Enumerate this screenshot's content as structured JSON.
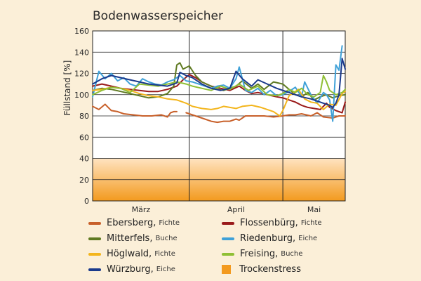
{
  "chart_data": {
    "type": "line",
    "title": "Bodenwasserspeicher",
    "ylabel": "Füllstand [%]",
    "ylim": [
      0,
      160
    ],
    "yticks": [
      0,
      20,
      40,
      60,
      80,
      100,
      120,
      140,
      160
    ],
    "months": [
      "März",
      "April",
      "Mai"
    ],
    "month_bounds": [
      0,
      31,
      61,
      81
    ],
    "trockenstress_threshold": 40,
    "grid": true,
    "series": [
      {
        "name": "Ebersberg",
        "species": "Fichte",
        "color": "#c8602a",
        "x": [
          0,
          2,
          4,
          6,
          8,
          10,
          13,
          16,
          19,
          22,
          24,
          25,
          26,
          27
        ],
        "y": [
          89,
          86,
          91,
          85,
          84,
          82,
          81,
          80,
          80,
          81,
          79,
          83,
          84,
          84
        ]
      },
      {
        "name": "Ebersberg",
        "species": "Fichte",
        "color": "#c8602a",
        "x": [
          30,
          32,
          35,
          38,
          40,
          42,
          44,
          46,
          47,
          49,
          52,
          55,
          58,
          61,
          63,
          65,
          67,
          70,
          72,
          74,
          77,
          79,
          81
        ],
        "y": [
          83,
          81,
          78,
          75,
          74,
          75,
          75,
          77,
          76,
          80,
          80,
          80,
          79,
          80,
          81,
          81,
          82,
          80,
          83,
          79,
          78,
          80,
          80
        ]
      },
      {
        "name": "Flossenbürg",
        "species": "Fichte",
        "color": "#9a1a1a",
        "x": [
          0,
          3,
          6,
          9,
          12,
          15,
          18,
          21,
          24,
          27,
          29,
          31,
          33,
          35,
          38,
          41,
          44,
          47,
          49,
          51,
          53,
          56,
          59,
          61,
          63,
          65,
          67,
          69,
          71,
          73,
          75,
          76,
          78,
          80,
          81
        ],
        "y": [
          108,
          110,
          108,
          106,
          105,
          104,
          103,
          103,
          105,
          108,
          114,
          119,
          116,
          112,
          108,
          106,
          104,
          108,
          104,
          101,
          102,
          100,
          98,
          97,
          95,
          93,
          90,
          88,
          87,
          86,
          92,
          88,
          85,
          83,
          93
        ]
      },
      {
        "name": "Mitterfels",
        "species": "Buche",
        "color": "#5f7a22",
        "x": [
          0,
          3,
          6,
          9,
          12,
          15,
          18,
          21,
          24,
          26,
          27,
          28,
          29,
          31,
          33,
          35,
          38,
          40,
          42,
          44,
          46,
          48,
          51,
          53,
          55,
          58,
          61,
          63,
          65,
          67,
          69,
          71,
          73,
          75,
          77,
          79,
          81
        ],
        "y": [
          104,
          106,
          105,
          103,
          101,
          99,
          97,
          98,
          101,
          108,
          128,
          130,
          124,
          127,
          118,
          112,
          108,
          105,
          104,
          106,
          108,
          113,
          106,
          110,
          105,
          112,
          110,
          105,
          100,
          98,
          102,
          95,
          98,
          100,
          97,
          99,
          100
        ]
      },
      {
        "name": "Riedenburg",
        "species": "Eiche",
        "color": "#3fa1d8",
        "x": [
          0,
          2,
          4,
          6,
          8,
          10,
          12,
          14,
          16,
          18,
          20,
          22,
          24,
          26,
          28,
          30,
          32,
          34,
          36,
          38,
          40,
          42,
          44,
          46,
          47,
          49,
          51,
          53,
          55,
          57,
          59,
          61,
          63,
          65,
          67,
          68,
          70,
          72,
          74,
          75,
          76,
          77,
          78,
          79,
          80
        ],
        "y": [
          98,
          122,
          115,
          120,
          113,
          116,
          110,
          108,
          115,
          112,
          110,
          109,
          112,
          114,
          118,
          113,
          112,
          110,
          108,
          106,
          108,
          109,
          106,
          115,
          126,
          104,
          102,
          106,
          100,
          104,
          99,
          100,
          103,
          107,
          98,
          112,
          100,
          92,
          102,
          100,
          95,
          75,
          128,
          123,
          146
        ]
      },
      {
        "name": "Höglwald",
        "species": "Fichte",
        "color": "#f3b51c",
        "x": [
          0,
          3,
          6,
          9,
          12,
          15,
          18,
          21,
          24,
          27,
          30,
          32,
          35,
          38,
          40,
          42,
          44,
          46,
          48,
          51,
          54,
          56,
          58,
          60,
          61,
          63,
          66,
          68,
          70,
          72,
          74,
          76,
          78,
          80,
          81
        ],
        "y": [
          104,
          105,
          107,
          106,
          104,
          101,
          99,
          98,
          96,
          95,
          92,
          89,
          87,
          86,
          87,
          89,
          88,
          87,
          89,
          90,
          88,
          86,
          84,
          80,
          85,
          99,
          105,
          96,
          93,
          92,
          86,
          91,
          90,
          101,
          103
        ]
      },
      {
        "name": "Freising",
        "species": "Buche",
        "color": "#8fbf35",
        "x": [
          0,
          3,
          6,
          9,
          12,
          15,
          18,
          21,
          24,
          27,
          30,
          32,
          35,
          38,
          41,
          44,
          47,
          50,
          53,
          56,
          59,
          61,
          63,
          65,
          67,
          69,
          71,
          73,
          74,
          75,
          76,
          78,
          80,
          81
        ],
        "y": [
          100,
          104,
          107,
          106,
          102,
          110,
          109,
          108,
          110,
          112,
          110,
          108,
          106,
          104,
          108,
          105,
          110,
          104,
          108,
          100,
          99,
          101,
          105,
          102,
          106,
          100,
          98,
          102,
          118,
          112,
          104,
          100,
          102,
          105
        ]
      },
      {
        "name": "Würzburg",
        "species": "Eiche",
        "color": "#1a3a8c",
        "x": [
          0,
          3,
          6,
          9,
          12,
          15,
          18,
          21,
          24,
          27,
          28,
          30,
          32,
          35,
          38,
          41,
          44,
          46,
          48,
          51,
          53,
          56,
          59,
          61,
          63,
          65,
          67,
          70,
          72,
          74,
          76,
          77,
          78,
          79,
          80,
          81
        ],
        "y": [
          110,
          115,
          118,
          116,
          114,
          112,
          110,
          109,
          108,
          111,
          121,
          118,
          116,
          110,
          106,
          104,
          106,
          122,
          115,
          108,
          114,
          110,
          106,
          104,
          102,
          100,
          98,
          96,
          94,
          92,
          90,
          88,
          92,
          100,
          134,
          124
        ]
      }
    ]
  },
  "legend": [
    {
      "name": "Ebersberg,",
      "species": "Fichte",
      "color": "#c8602a",
      "kind": "line"
    },
    {
      "name": "Flossenbürg,",
      "species": "Fichte",
      "color": "#9a1a1a",
      "kind": "line"
    },
    {
      "name": "Mitterfels,",
      "species": "Buche",
      "color": "#5f7a22",
      "kind": "line"
    },
    {
      "name": "Riedenburg,",
      "species": "Eiche",
      "color": "#3fa1d8",
      "kind": "line"
    },
    {
      "name": "Höglwald,",
      "species": "Fichte",
      "color": "#f3b51c",
      "kind": "line"
    },
    {
      "name": "Freising,",
      "species": "Buche",
      "color": "#8fbf35",
      "kind": "line"
    },
    {
      "name": "Würzburg,",
      "species": "Eiche",
      "color": "#1a3a8c",
      "kind": "line"
    },
    {
      "name": "Trockenstress",
      "species": "",
      "color": "#f39a1e",
      "kind": "block"
    }
  ],
  "colors": {
    "background": "#fbefd8",
    "plot_background": "#ffffff",
    "stress_top": "#ffe3c0",
    "stress_bottom": "#f39a1e"
  }
}
